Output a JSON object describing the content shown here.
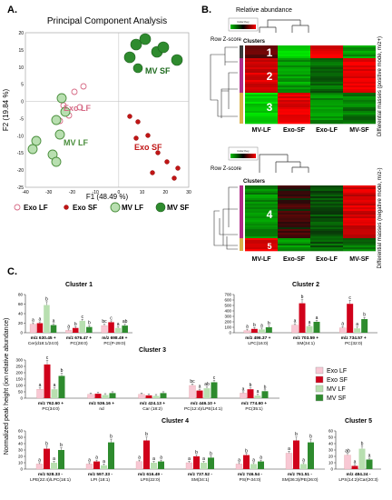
{
  "panel_a": {
    "letter": "A.",
    "title": "Principal Component Analysis",
    "xlabel": "F1 (48.49 %)",
    "ylabel": "F2 (19.84 %)",
    "xticks": [
      "-40",
      "-30",
      "-20",
      "-10",
      "0",
      "10",
      "20",
      "30"
    ],
    "yticks": [
      "20",
      "15",
      "10",
      "5",
      "0",
      "-5",
      "-10",
      "-15",
      "-20",
      "-25"
    ],
    "group_labels": [
      "MV SF",
      "Exo LF",
      "MV LF",
      "Exo SF"
    ],
    "legend": [
      {
        "label": "Exo LF",
        "style": "exolf"
      },
      {
        "label": "Exo SF",
        "style": "exosf"
      },
      {
        "label": "MV LF",
        "style": "mvlf"
      },
      {
        "label": "MV SF",
        "style": "mvsf"
      }
    ]
  },
  "panel_b": {
    "letter": "B.",
    "legend_title": "Relative abundance",
    "colorkey_top": "Color Key",
    "colorkey_bottom": "Color Key",
    "rowz_top": "Row Z-score",
    "rowz_bottom": "Row Z-score",
    "clusters_top": "Clusters",
    "clusters_bottom": "Clusters",
    "cluster_numbers_top": [
      "1",
      "2",
      "3"
    ],
    "cluster_numbers_bottom": [
      "4",
      "5"
    ],
    "columns_top": [
      "MV-LF",
      "Exo-SF",
      "Exo-LF",
      "MV-SF"
    ],
    "columns_bottom": [
      "MV-LF",
      "Exo-SF",
      "Exo-LF",
      "MV-SF"
    ],
    "side_top": "Differential masses (positive mode, m/z+)",
    "side_bottom": "Differential masses (negative mode, m/z-)"
  },
  "panel_c": {
    "letter": "C.",
    "ylabel": "Normalized peak height (ion relative abundance)",
    "legend": [
      "Exo LF",
      "Exo SF",
      "MV LF",
      "MV SF"
    ],
    "colors": {
      "exo_lf": "#f8c8d4",
      "exo_sf": "#d0021b",
      "mv_lf": "#b8dfb0",
      "mv_sf": "#2e8b2e"
    },
    "charts": [
      {
        "title": "Cluster 1",
        "yticks": [
          "0",
          "20",
          "40",
          "60",
          "80"
        ],
        "ymax": 80,
        "groups": [
          {
            "l1": "m/z 630.45 +",
            "l2": "Cer(d18:1/24:0)",
            "values": [
              18,
              20,
              58,
              16
            ],
            "letters": [
              "a",
              "a",
              "b",
              "a"
            ]
          },
          {
            "l1": "m/z 676.47 +",
            "l2": "PC(28:0)",
            "values": [
              5,
              10,
              25,
              12
            ],
            "letters": [
              "a",
              "b",
              "c",
              "b"
            ]
          },
          {
            "l1": "m/z 698.49 +",
            "l2": "PC(P-29:0)",
            "values": [
              15,
              22,
              10,
              15
            ],
            "letters": [
              "bc",
              "c",
              "a",
              "ab"
            ]
          }
        ]
      },
      {
        "title": "Cluster 2",
        "yticks": [
          "0",
          "100",
          "200",
          "300",
          "400",
          "500",
          "600",
          "700"
        ],
        "ymax": 700,
        "groups": [
          {
            "l1": "m/z 496.37 +",
            "l2": "LPC(16:0)",
            "values": [
              40,
              70,
              60,
              100
            ],
            "letters": [
              "a",
              "b",
              "a",
              "b"
            ]
          },
          {
            "l1": "m/z 703.59 +",
            "l2": "SM(34:1)",
            "values": [
              140,
              540,
              120,
              200
            ],
            "letters": [
              "a",
              "b",
              "a",
              "a"
            ]
          },
          {
            "l1": "m/z 734.57 +",
            "l2": "PC(32:0)",
            "values": [
              90,
              530,
              80,
              250
            ],
            "letters": [
              "a",
              "c",
              "a",
              "b"
            ]
          }
        ]
      },
      {
        "title": "Cluster 3",
        "yticks": [
          "0",
          "50",
          "100",
          "150",
          "200",
          "250",
          "300"
        ],
        "ymax": 300,
        "groups": [
          {
            "l1": "m/z 762.60 +",
            "l2": "PC(34:0)",
            "values": [
              70,
              265,
              70,
              175
            ],
            "letters": [
              "a",
              "c",
              "a",
              "b"
            ]
          },
          {
            "l1": "m/z 536.16 +",
            "l2": "nd",
            "values": [
              30,
              35,
              25,
              40
            ],
            "letters": [
              "",
              "",
              "",
              ""
            ]
          },
          {
            "l1": "m/z 424.13 +",
            "l2": "Car (18:2)",
            "values": [
              30,
              22,
              18,
              40
            ],
            "letters": [
              "",
              "",
              "",
              ""
            ]
          },
          {
            "l1": "m/z 446.10 +",
            "l2": "PC(12:4)/LPE(14:1)",
            "values": [
              100,
              60,
              78,
              125
            ],
            "letters": [
              "bc",
              "a",
              "ab",
              "c"
            ]
          },
          {
            "l1": "m/z 774.60 +",
            "l2": "PC(35:1)",
            "values": [
              40,
              70,
              20,
              55
            ],
            "letters": [
              "a",
              "b",
              "a",
              "b"
            ]
          }
        ]
      },
      {
        "title": "Cluster 4",
        "yticks": [
          "0",
          "10",
          "20",
          "30",
          "40",
          "50",
          "60"
        ],
        "ymax": 60,
        "groups": [
          {
            "l1": "m/z 528.33 -",
            "l2": "LPE(22:4)/LPC(16:1)",
            "values": [
              8,
              32,
              10,
              30
            ],
            "letters": [
              "a",
              "b",
              "a",
              "b"
            ]
          },
          {
            "l1": "m/z 597.33 -",
            "l2": "LPI (18:1)",
            "values": [
              8,
              12,
              6,
              42
            ],
            "letters": [
              "a",
              "a",
              "a",
              "b"
            ]
          },
          {
            "l1": "m/z 616.49 -",
            "l2": "LPS(22:0)",
            "values": [
              12,
              45,
              10,
              12
            ],
            "letters": [
              "a",
              "b",
              "a",
              "a"
            ]
          },
          {
            "l1": "m/z 737.52 -",
            "l2": "SM(34:1)",
            "values": [
              10,
              20,
              10,
              18
            ],
            "letters": [
              "a",
              "b",
              "a",
              "b"
            ]
          },
          {
            "l1": "m/z 746.54 -",
            "l2": "PS(P-34:0)",
            "values": [
              8,
              22,
              8,
              12
            ],
            "letters": [
              "a",
              "b",
              "a",
              "a"
            ]
          },
          {
            "l1": "m/z 761.51 -",
            "l2": "SM(36:3)/PE(26:0)",
            "values": [
              25,
              45,
              8,
              42
            ],
            "letters": [
              "a",
              "b",
              "a",
              "b"
            ]
          }
        ]
      },
      {
        "title": "Cluster 5",
        "yticks": [
          "0",
          "10",
          "20",
          "30",
          "40",
          "50",
          "60"
        ],
        "ymax": 60,
        "groups": [
          {
            "l1": "m/z 484.24 -",
            "l2": "LPS(14:2)/Car(20:3)",
            "values": [
              22,
              5,
              32,
              15
            ],
            "letters": [
              "ab",
              "a",
              "b",
              "a"
            ]
          }
        ]
      }
    ]
  }
}
